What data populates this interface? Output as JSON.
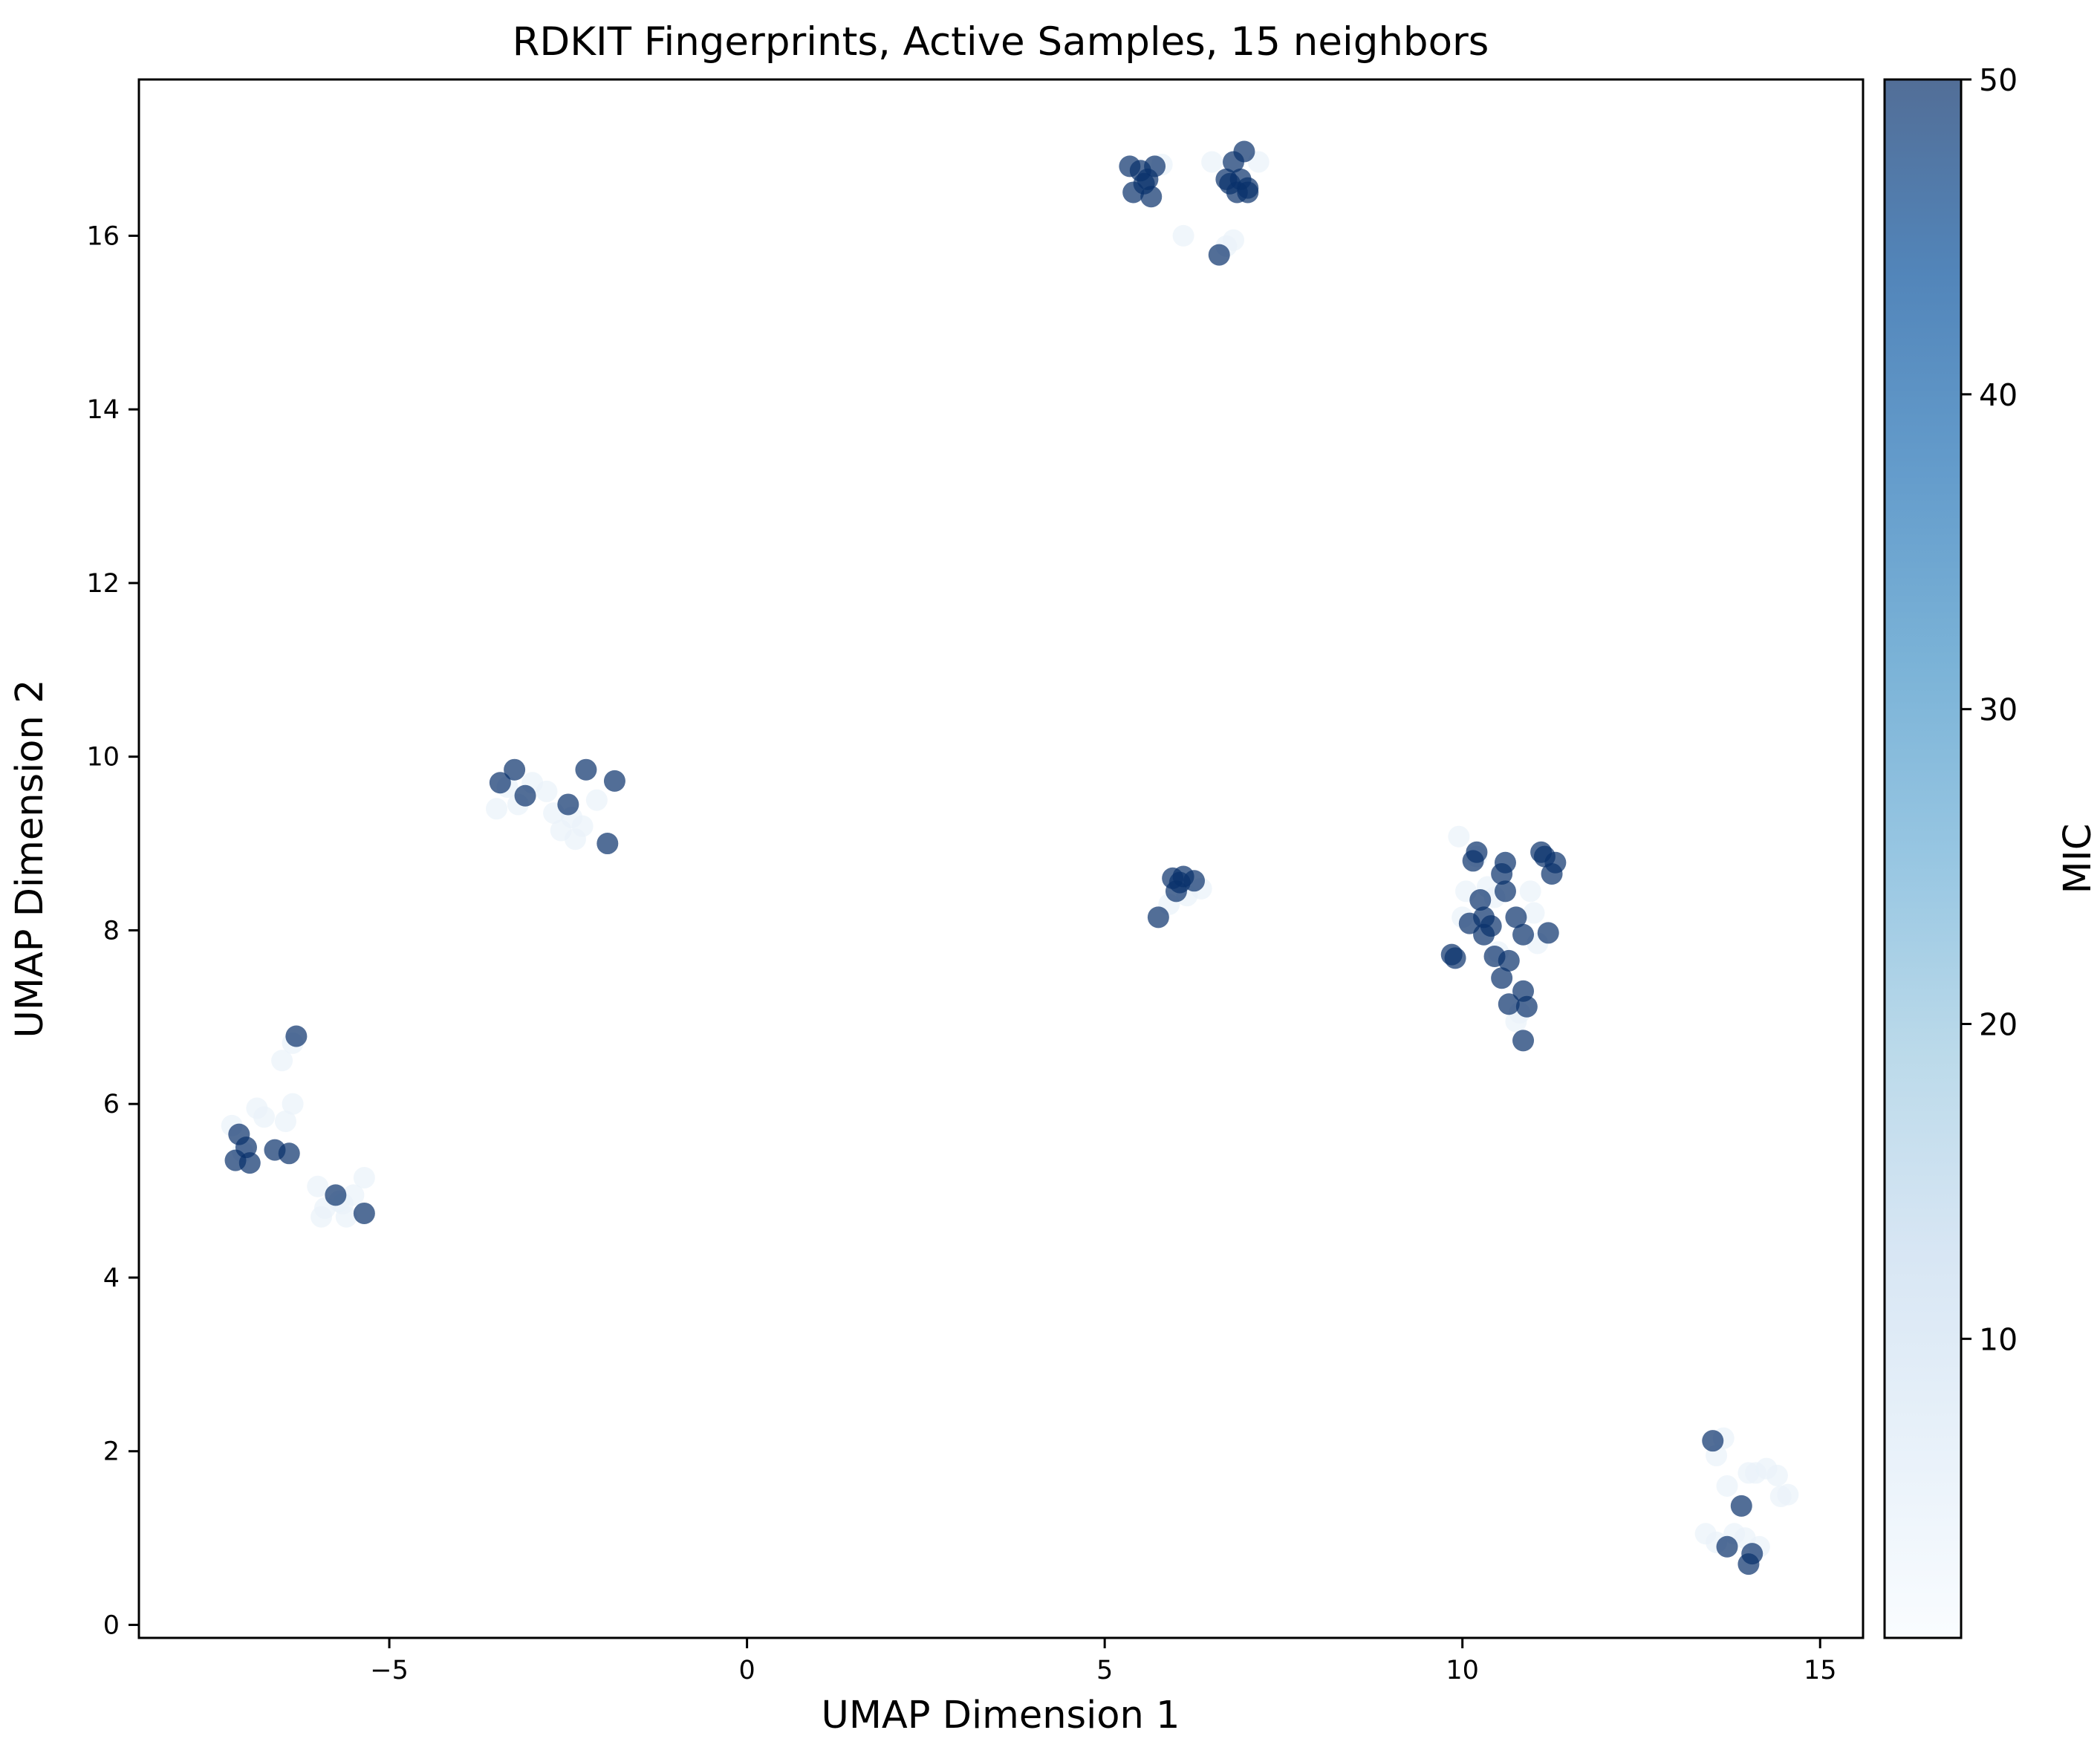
{
  "chart_data": {
    "type": "scatter",
    "title": "RDKIT Fingerprints, Active Samples, 15 neighbors",
    "xlabel": "UMAP Dimension 1",
    "ylabel": "UMAP Dimension 2",
    "xlim": [
      -8.5,
      15.6
    ],
    "ylim": [
      -0.15,
      17.8
    ],
    "xticks": [
      -5,
      0,
      5,
      10,
      15
    ],
    "xtick_labels": [
      "−5",
      "0",
      "5",
      "10",
      "15"
    ],
    "yticks": [
      0,
      2,
      4,
      6,
      8,
      10,
      12,
      14,
      16
    ],
    "ytick_labels": [
      "0",
      "2",
      "4",
      "6",
      "8",
      "10",
      "12",
      "14",
      "16"
    ],
    "grid": false,
    "colorbar": {
      "label": "MIC",
      "range": [
        0.5,
        50
      ],
      "ticks": [
        10,
        20,
        30,
        40,
        50
      ],
      "tick_labels": [
        "10",
        "20",
        "30",
        "40",
        "50"
      ],
      "colormap": "Blues",
      "alpha": 0.7,
      "stops": [
        "#f7fbff",
        "#deebf7",
        "#c6dbef",
        "#9ecae1",
        "#6baed6",
        "#4292c6",
        "#2171b5",
        "#08519c",
        "#08306b"
      ]
    },
    "points": [
      {
        "x": -7.2,
        "y": 5.75,
        "c": 4
      },
      {
        "x": -7.1,
        "y": 5.65,
        "c": 50
      },
      {
        "x": -7.0,
        "y": 5.5,
        "c": 50
      },
      {
        "x": -7.15,
        "y": 5.35,
        "c": 50
      },
      {
        "x": -6.95,
        "y": 5.32,
        "c": 50
      },
      {
        "x": -6.85,
        "y": 5.95,
        "c": 4
      },
      {
        "x": -6.75,
        "y": 5.85,
        "c": 4
      },
      {
        "x": -6.6,
        "y": 5.47,
        "c": 50
      },
      {
        "x": -6.45,
        "y": 5.8,
        "c": 4
      },
      {
        "x": -6.35,
        "y": 6.0,
        "c": 4
      },
      {
        "x": -6.4,
        "y": 5.43,
        "c": 50
      },
      {
        "x": -6.5,
        "y": 6.5,
        "c": 4
      },
      {
        "x": -6.35,
        "y": 6.7,
        "c": 4
      },
      {
        "x": -6.3,
        "y": 6.78,
        "c": 50
      },
      {
        "x": -7.05,
        "y": 5.45,
        "c": 4
      },
      {
        "x": -6.0,
        "y": 5.05,
        "c": 4
      },
      {
        "x": -5.9,
        "y": 4.8,
        "c": 4
      },
      {
        "x": -5.95,
        "y": 4.7,
        "c": 4
      },
      {
        "x": -5.75,
        "y": 4.95,
        "c": 50
      },
      {
        "x": -5.65,
        "y": 4.85,
        "c": 4
      },
      {
        "x": -5.6,
        "y": 4.7,
        "c": 4
      },
      {
        "x": -5.5,
        "y": 4.95,
        "c": 4
      },
      {
        "x": -5.35,
        "y": 5.15,
        "c": 4
      },
      {
        "x": -5.35,
        "y": 4.74,
        "c": 50
      },
      {
        "x": -5.7,
        "y": 4.88,
        "c": 4
      },
      {
        "x": -3.45,
        "y": 9.7,
        "c": 50
      },
      {
        "x": -3.25,
        "y": 9.85,
        "c": 50
      },
      {
        "x": -3.1,
        "y": 9.55,
        "c": 50
      },
      {
        "x": -3.5,
        "y": 9.4,
        "c": 4
      },
      {
        "x": -3.35,
        "y": 9.65,
        "c": 4
      },
      {
        "x": -3.0,
        "y": 9.7,
        "c": 4
      },
      {
        "x": -2.8,
        "y": 9.6,
        "c": 4
      },
      {
        "x": -2.7,
        "y": 9.35,
        "c": 4
      },
      {
        "x": -2.6,
        "y": 9.15,
        "c": 4
      },
      {
        "x": -2.5,
        "y": 9.45,
        "c": 50
      },
      {
        "x": -2.45,
        "y": 9.3,
        "c": 4
      },
      {
        "x": -2.4,
        "y": 9.05,
        "c": 4
      },
      {
        "x": -2.3,
        "y": 9.2,
        "c": 4
      },
      {
        "x": -2.25,
        "y": 9.85,
        "c": 50
      },
      {
        "x": -2.1,
        "y": 9.5,
        "c": 4
      },
      {
        "x": -1.95,
        "y": 9.0,
        "c": 50
      },
      {
        "x": -1.85,
        "y": 9.72,
        "c": 50
      },
      {
        "x": -3.2,
        "y": 9.45,
        "c": 4
      },
      {
        "x": 5.35,
        "y": 16.8,
        "c": 50
      },
      {
        "x": 5.4,
        "y": 16.5,
        "c": 50
      },
      {
        "x": 5.5,
        "y": 16.75,
        "c": 50
      },
      {
        "x": 5.55,
        "y": 16.6,
        "c": 50
      },
      {
        "x": 5.65,
        "y": 16.45,
        "c": 50
      },
      {
        "x": 5.6,
        "y": 16.65,
        "c": 50
      },
      {
        "x": 5.7,
        "y": 16.8,
        "c": 50
      },
      {
        "x": 5.8,
        "y": 16.82,
        "c": 4
      },
      {
        "x": 6.1,
        "y": 16.0,
        "c": 4
      },
      {
        "x": 6.5,
        "y": 16.85,
        "c": 4
      },
      {
        "x": 6.6,
        "y": 15.78,
        "c": 50
      },
      {
        "x": 6.7,
        "y": 16.65,
        "c": 50
      },
      {
        "x": 6.75,
        "y": 16.6,
        "c": 50
      },
      {
        "x": 6.8,
        "y": 16.85,
        "c": 50
      },
      {
        "x": 6.85,
        "y": 16.5,
        "c": 50
      },
      {
        "x": 6.9,
        "y": 16.65,
        "c": 50
      },
      {
        "x": 6.95,
        "y": 16.97,
        "c": 50
      },
      {
        "x": 7.0,
        "y": 16.55,
        "c": 50
      },
      {
        "x": 7.0,
        "y": 16.5,
        "c": 50
      },
      {
        "x": 7.15,
        "y": 16.85,
        "c": 4
      },
      {
        "x": 6.8,
        "y": 15.95,
        "c": 4
      },
      {
        "x": 6.7,
        "y": 15.88,
        "c": 4
      },
      {
        "x": 5.75,
        "y": 8.15,
        "c": 50
      },
      {
        "x": 5.95,
        "y": 8.6,
        "c": 50
      },
      {
        "x": 6.0,
        "y": 8.45,
        "c": 50
      },
      {
        "x": 6.05,
        "y": 8.55,
        "c": 50
      },
      {
        "x": 6.1,
        "y": 8.62,
        "c": 50
      },
      {
        "x": 6.15,
        "y": 8.4,
        "c": 4
      },
      {
        "x": 6.25,
        "y": 8.57,
        "c": 50
      },
      {
        "x": 6.35,
        "y": 8.48,
        "c": 4
      },
      {
        "x": 5.9,
        "y": 8.3,
        "c": 4
      },
      {
        "x": 9.85,
        "y": 7.72,
        "c": 50
      },
      {
        "x": 9.9,
        "y": 7.68,
        "c": 50
      },
      {
        "x": 9.95,
        "y": 9.08,
        "c": 4
      },
      {
        "x": 10.05,
        "y": 8.45,
        "c": 4
      },
      {
        "x": 10.1,
        "y": 8.08,
        "c": 50
      },
      {
        "x": 10.15,
        "y": 8.8,
        "c": 50
      },
      {
        "x": 10.2,
        "y": 8.9,
        "c": 50
      },
      {
        "x": 10.25,
        "y": 8.35,
        "c": 50
      },
      {
        "x": 10.3,
        "y": 8.15,
        "c": 50
      },
      {
        "x": 10.3,
        "y": 7.95,
        "c": 50
      },
      {
        "x": 10.35,
        "y": 8.5,
        "c": 4
      },
      {
        "x": 10.4,
        "y": 8.05,
        "c": 50
      },
      {
        "x": 10.45,
        "y": 7.7,
        "c": 50
      },
      {
        "x": 10.45,
        "y": 8.38,
        "c": 4
      },
      {
        "x": 10.5,
        "y": 7.75,
        "c": 4
      },
      {
        "x": 10.55,
        "y": 8.65,
        "c": 50
      },
      {
        "x": 10.55,
        "y": 7.45,
        "c": 50
      },
      {
        "x": 10.6,
        "y": 8.78,
        "c": 50
      },
      {
        "x": 10.6,
        "y": 8.45,
        "c": 50
      },
      {
        "x": 10.65,
        "y": 7.65,
        "c": 50
      },
      {
        "x": 10.65,
        "y": 7.15,
        "c": 50
      },
      {
        "x": 10.75,
        "y": 8.15,
        "c": 50
      },
      {
        "x": 10.75,
        "y": 6.95,
        "c": 4
      },
      {
        "x": 10.8,
        "y": 7.05,
        "c": 4
      },
      {
        "x": 10.85,
        "y": 7.95,
        "c": 50
      },
      {
        "x": 10.85,
        "y": 7.3,
        "c": 50
      },
      {
        "x": 10.85,
        "y": 6.73,
        "c": 50
      },
      {
        "x": 10.9,
        "y": 7.12,
        "c": 50
      },
      {
        "x": 10.95,
        "y": 8.45,
        "c": 4
      },
      {
        "x": 11.0,
        "y": 8.2,
        "c": 4
      },
      {
        "x": 11.05,
        "y": 7.85,
        "c": 4
      },
      {
        "x": 11.1,
        "y": 8.9,
        "c": 50
      },
      {
        "x": 11.15,
        "y": 8.85,
        "c": 50
      },
      {
        "x": 11.2,
        "y": 7.97,
        "c": 50
      },
      {
        "x": 11.25,
        "y": 8.65,
        "c": 50
      },
      {
        "x": 11.3,
        "y": 8.78,
        "c": 50
      },
      {
        "x": 10.0,
        "y": 8.15,
        "c": 4
      },
      {
        "x": 10.2,
        "y": 8.85,
        "c": 4
      },
      {
        "x": 13.4,
        "y": 1.05,
        "c": 4
      },
      {
        "x": 13.5,
        "y": 2.12,
        "c": 50
      },
      {
        "x": 13.55,
        "y": 1.95,
        "c": 4
      },
      {
        "x": 13.55,
        "y": 0.95,
        "c": 4
      },
      {
        "x": 13.65,
        "y": 2.15,
        "c": 4
      },
      {
        "x": 13.7,
        "y": 1.6,
        "c": 4
      },
      {
        "x": 13.7,
        "y": 0.9,
        "c": 50
      },
      {
        "x": 13.8,
        "y": 1.05,
        "c": 4
      },
      {
        "x": 13.9,
        "y": 1.37,
        "c": 50
      },
      {
        "x": 13.95,
        "y": 1.0,
        "c": 4
      },
      {
        "x": 14.0,
        "y": 1.75,
        "c": 4
      },
      {
        "x": 14.0,
        "y": 0.7,
        "c": 50
      },
      {
        "x": 14.05,
        "y": 0.82,
        "c": 50
      },
      {
        "x": 14.1,
        "y": 1.75,
        "c": 4
      },
      {
        "x": 14.15,
        "y": 0.9,
        "c": 4
      },
      {
        "x": 14.25,
        "y": 1.8,
        "c": 4
      },
      {
        "x": 14.4,
        "y": 1.72,
        "c": 4
      },
      {
        "x": 14.45,
        "y": 1.48,
        "c": 4
      },
      {
        "x": 14.55,
        "y": 1.5,
        "c": 4
      }
    ]
  }
}
